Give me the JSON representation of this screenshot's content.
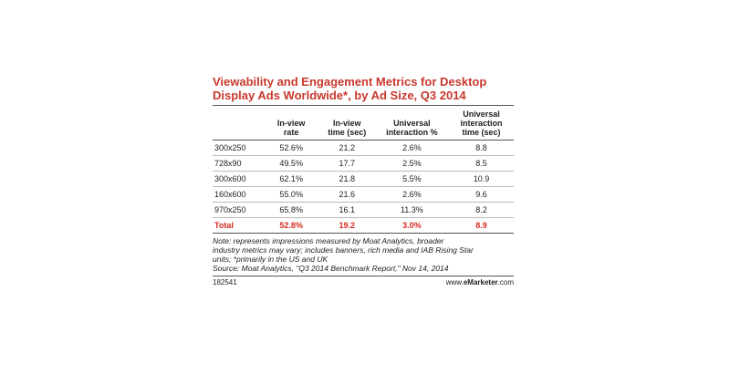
{
  "title_line1": "Viewability and Engagement Metrics for Desktop",
  "title_line2": "Display Ads Worldwide*, by Ad Size, Q3 2014",
  "columns": {
    "rate": [
      "In-view",
      "rate"
    ],
    "time": [
      "In-view",
      "time (sec)"
    ],
    "interaction": [
      "Universal",
      "interaction %"
    ],
    "interaction_time": [
      "Universal",
      "interaction",
      "time (sec)"
    ]
  },
  "chart_data": {
    "type": "table",
    "title": "Viewability and Engagement Metrics for Desktop Display Ads Worldwide*, by Ad Size, Q3 2014",
    "columns": [
      "",
      "In-view rate",
      "In-view time (sec)",
      "Universal interaction %",
      "Universal interaction time (sec)"
    ],
    "rows": [
      [
        "300x250",
        "52.6%",
        "21.2",
        "2.6%",
        "8.8"
      ],
      [
        "728x90",
        "49.5%",
        "17.7",
        "2.5%",
        "8.5"
      ],
      [
        "300x600",
        "62.1%",
        "21.8",
        "5.5%",
        "10.9"
      ],
      [
        "160x600",
        "55.0%",
        "21.6",
        "2.6%",
        "9.6"
      ],
      [
        "970x250",
        "65.8%",
        "16.1",
        "11.3%",
        "8.2"
      ],
      [
        "Total",
        "52.8%",
        "19.2",
        "3.0%",
        "8.9"
      ]
    ]
  },
  "notes": {
    "line1": "Note: represents impressions measured by Moat Analytics, broader",
    "line2": "industry metrics may vary; includes banners, rich media and IAB Rising Star",
    "line3": "units; *primarily in the US and UK",
    "line4": "Source: Moat Analytics, \"Q3 2014 Benchmark Report,\" Nov 14, 2014"
  },
  "footer": {
    "id": "182541",
    "brand_prefix": "www.",
    "brand_bold": "eMarketer",
    "brand_suffix": ".com"
  }
}
